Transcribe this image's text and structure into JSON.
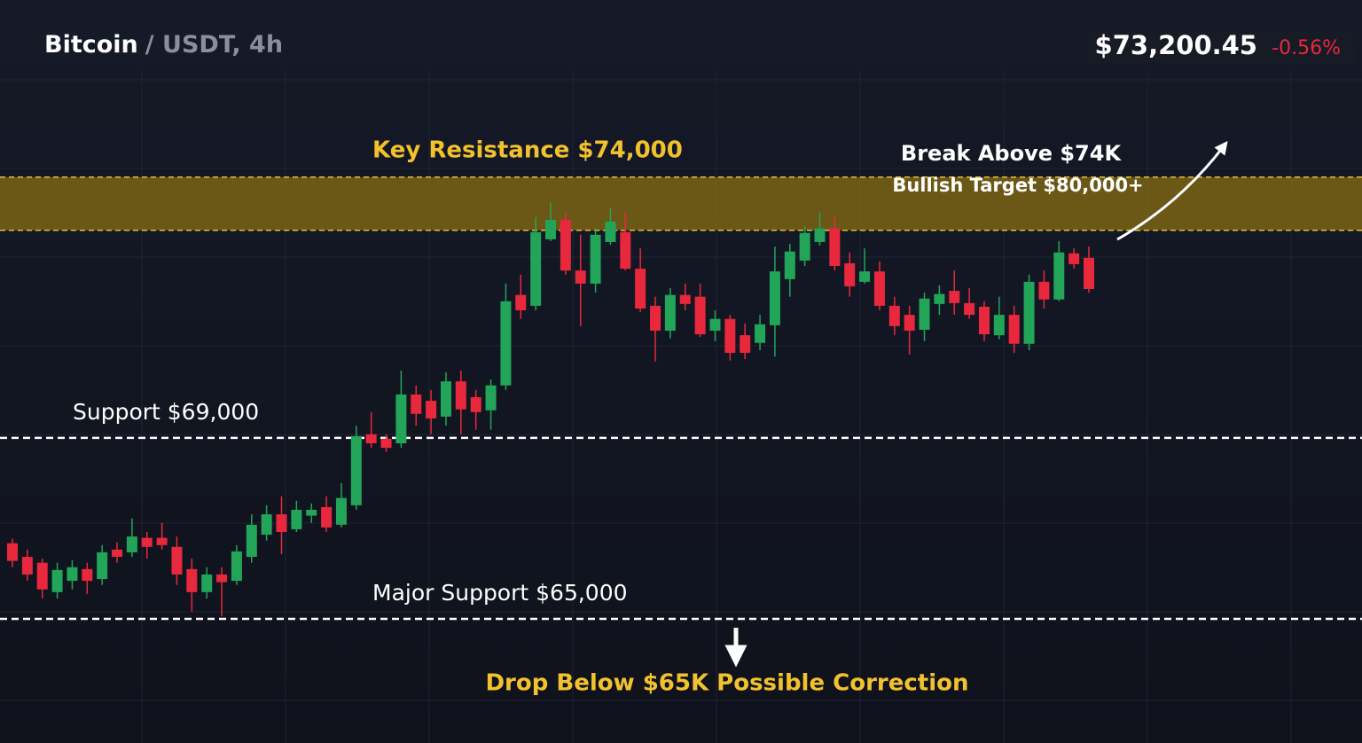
{
  "chart_data": {
    "type": "candlestick",
    "title": "Bitcoin",
    "subtitle": "/ USDT, 4h",
    "price": "$73,200.45",
    "change": "-0.56%",
    "up_color": "#22a559",
    "down_color": "#e8283c",
    "ylim": [
      62255,
      78680
    ],
    "grid": true,
    "resistance": {
      "label": "Key Resistance $74,000",
      "value": 74000
    },
    "levels": [
      {
        "label": "Support $69,000",
        "value": 69000
      },
      {
        "label": "Major Support $65,000",
        "value": 65000
      }
    ],
    "annotations": [
      "Break Above $74K",
      "Bullish Target $80,000+",
      "Drop Below $65K Possible Correction"
    ],
    "candles": {
      "open": [
        66670,
        66370,
        66240,
        65590,
        65840,
        66100,
        65880,
        66530,
        66470,
        66790,
        66790,
        66590,
        66100,
        65590,
        65980,
        65840,
        66370,
        66860,
        67310,
        66980,
        67280,
        67470,
        67080,
        67510,
        69080,
        68980,
        68880,
        69960,
        69820,
        69470,
        70250,
        69900,
        69610,
        70160,
        72160,
        71920,
        73390,
        73820,
        72700,
        72410,
        73330,
        73550,
        72740,
        71920,
        71370,
        72160,
        72120,
        71370,
        71630,
        71270,
        71100,
        71490,
        72510,
        72920,
        73330,
        73630,
        72860,
        72450,
        72680,
        71920,
        71720,
        71390,
        71960,
        72250,
        71980,
        71900,
        71270,
        71720,
        71080,
        72450,
        72060,
        73080,
        72980
      ],
      "high": [
        66770,
        66530,
        66330,
        66240,
        66300,
        66240,
        66630,
        66690,
        67220,
        66920,
        67120,
        66820,
        66330,
        66140,
        66140,
        66630,
        67310,
        67510,
        67710,
        67610,
        67550,
        67710,
        68000,
        69270,
        69570,
        69080,
        70490,
        70160,
        70060,
        70450,
        70490,
        70060,
        70290,
        72410,
        72610,
        73880,
        74210,
        73980,
        73490,
        73630,
        74080,
        73980,
        73190,
        72120,
        72310,
        72410,
        72410,
        71820,
        71720,
        71530,
        71720,
        73230,
        73290,
        73680,
        73980,
        73900,
        73100,
        73190,
        72900,
        72120,
        71920,
        72210,
        72370,
        72700,
        72310,
        72020,
        72120,
        71920,
        72610,
        72700,
        73350,
        73190,
        73230
      ],
      "low": [
        66140,
        65840,
        65450,
        65450,
        65650,
        65550,
        65750,
        66240,
        66370,
        66330,
        66530,
        65750,
        65160,
        65450,
        65060,
        65750,
        66240,
        66730,
        66430,
        66920,
        67120,
        66920,
        67020,
        67410,
        68780,
        68690,
        68780,
        69270,
        69080,
        69270,
        69080,
        69180,
        69180,
        70060,
        71630,
        71820,
        73350,
        72610,
        71470,
        72210,
        73270,
        72700,
        71780,
        70690,
        71200,
        71820,
        71230,
        71140,
        70710,
        70740,
        70940,
        70800,
        72120,
        72800,
        73250,
        72700,
        72120,
        72410,
        71820,
        71270,
        70840,
        71140,
        71720,
        71720,
        71630,
        71140,
        71180,
        70880,
        70940,
        71860,
        72020,
        72740,
        72210
      ],
      "close": [
        66280,
        65980,
        65650,
        66080,
        66140,
        65840,
        66470,
        66370,
        66820,
        66590,
        66630,
        65980,
        65590,
        65980,
        65810,
        66490,
        67080,
        67310,
        66920,
        67410,
        67410,
        67020,
        67670,
        69040,
        68880,
        68780,
        69960,
        69530,
        69430,
        70250,
        69630,
        69570,
        70160,
        72020,
        71820,
        73550,
        73820,
        72700,
        72410,
        73490,
        73780,
        72740,
        71860,
        71370,
        72160,
        71960,
        71290,
        71630,
        70880,
        70880,
        71510,
        72680,
        73120,
        73530,
        73630,
        72800,
        72350,
        72680,
        71920,
        71470,
        71370,
        72080,
        72180,
        71980,
        71720,
        71290,
        71720,
        71080,
        72450,
        72060,
        73100,
        72840,
        72290
      ]
    }
  }
}
